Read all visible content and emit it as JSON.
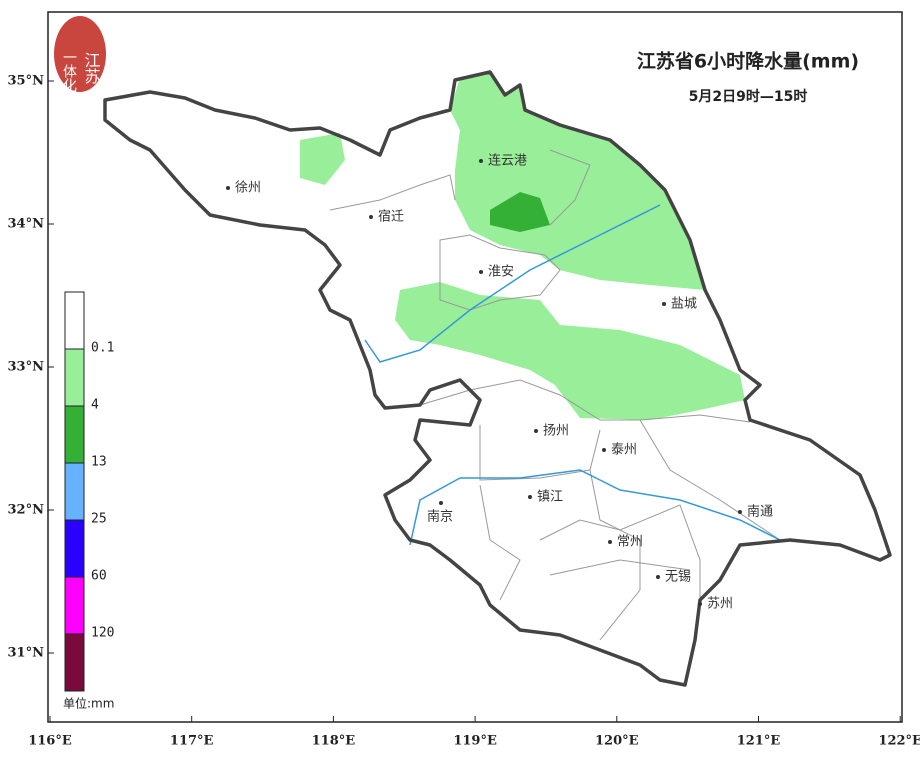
{
  "logo": {
    "line1": "江苏",
    "line2": "一体化"
  },
  "map": {
    "title": "江苏省6小时降水量(mm)",
    "subtitle": "5月2日9时—15时"
  },
  "cities": [
    "徐州",
    "宿迁",
    "连云港",
    "淮安",
    "盐城",
    "扬州",
    "泰州",
    "南京",
    "镇江",
    "常州",
    "南通",
    "无锡",
    "苏州"
  ],
  "lon_ticks": [
    "116°E",
    "117°E",
    "118°E",
    "119°E",
    "120°E",
    "121°E",
    "122°E"
  ],
  "lat_ticks": [
    "35°N",
    "34°N",
    "33°N",
    "32°N",
    "31°N"
  ],
  "legend": {
    "colors": [
      "#ffffff",
      "#99ee99",
      "#33b035",
      "#66b2ff",
      "#2a00ff",
      "#ff00ff",
      "#7a0a3c"
    ],
    "labels": [
      "0.1",
      "4",
      "13",
      "25",
      "60",
      "120"
    ],
    "unit": "单位:mm"
  }
}
